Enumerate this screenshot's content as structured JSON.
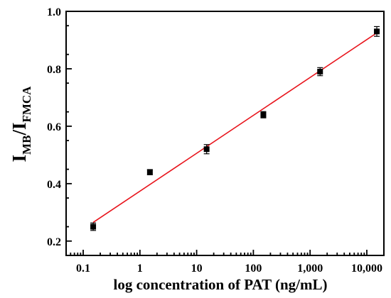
{
  "chart_data": {
    "type": "scatter",
    "xscale": "log",
    "xlim": [
      0.05,
      20000
    ],
    "ylim": [
      0.15,
      1.0
    ],
    "xticks": [
      0.1,
      1,
      10,
      100,
      1000,
      10000
    ],
    "xtick_labels": [
      "0.1",
      "1",
      "10",
      "100",
      "1,000",
      "10,000"
    ],
    "yticks": [
      0.2,
      0.4,
      0.6,
      0.8,
      1.0
    ],
    "ytick_labels": [
      "0.2",
      "0.4",
      "0.6",
      "0.8",
      "1.0"
    ],
    "xlabel": "log concentration of PAT (ng/mL)",
    "ylabel": {
      "main1": "I",
      "sub1": "MB",
      "sep": "/I",
      "sub2": "FMCA"
    },
    "series": [
      {
        "x": [
          0.15,
          1.5,
          15,
          150,
          1500,
          15000
        ],
        "y": [
          0.25,
          0.44,
          0.52,
          0.64,
          0.79,
          0.93
        ],
        "err": [
          0.013,
          0.009,
          0.016,
          0.011,
          0.014,
          0.017
        ]
      }
    ],
    "fit": {
      "x": [
        0.15,
        15000
      ],
      "y": [
        0.265,
        0.925
      ],
      "color": "#e8141c"
    },
    "grid": false
  }
}
